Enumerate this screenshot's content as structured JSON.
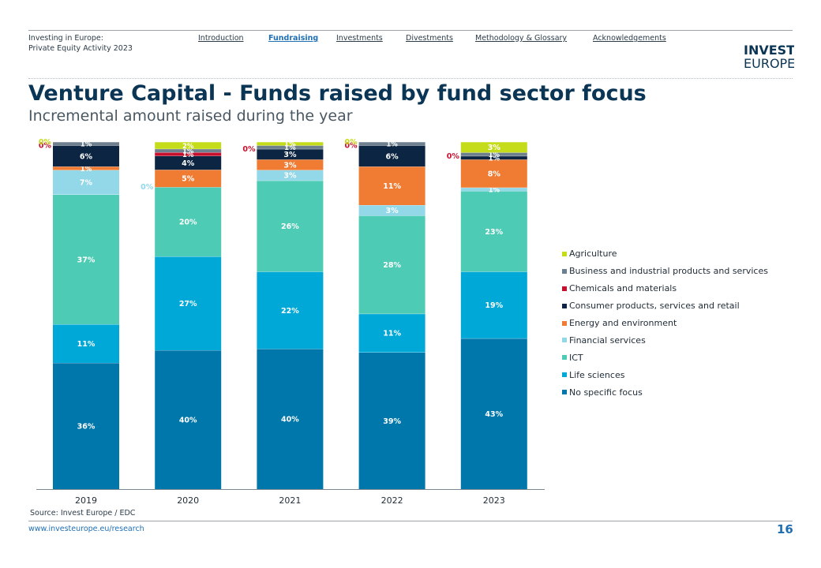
{
  "header": {
    "doc_title_line1": "Investing in Europe:",
    "doc_title_line2": "Private Equity Activity 2023",
    "nav": [
      "Introduction",
      "Fundraising",
      "Investments",
      "Divestments",
      "Methodology & Glossary",
      "Acknowledgements"
    ],
    "active_nav": "Fundraising",
    "logo_line1": "INVEST",
    "logo_line2": "EUROPE"
  },
  "page": {
    "title": "Venture Capital - Funds raised by fund sector focus",
    "subtitle": "Incremental amount raised during the year"
  },
  "chart_data": {
    "type": "bar",
    "stacked": true,
    "normalized": true,
    "categories": [
      "2019",
      "2020",
      "2021",
      "2022",
      "2023"
    ],
    "ylim": [
      0,
      100
    ],
    "grid": false,
    "legend_position": "right",
    "series": [
      {
        "name": "No specific focus",
        "color": "#0077ab",
        "values": [
          36,
          40,
          40,
          39,
          43
        ]
      },
      {
        "name": "Life sciences",
        "color": "#00a8d8",
        "values": [
          11,
          27,
          22,
          11,
          19
        ]
      },
      {
        "name": "ICT",
        "color": "#4ecbb4",
        "values": [
          37,
          20,
          26,
          28,
          23
        ]
      },
      {
        "name": "Financial services",
        "color": "#92d8e8",
        "values": [
          7,
          0,
          3,
          3,
          1
        ]
      },
      {
        "name": "Energy and environment",
        "color": "#f07c33",
        "values": [
          1,
          5,
          3,
          11,
          8
        ]
      },
      {
        "name": "Consumer products, services and retail",
        "color": "#0b2542",
        "values": [
          6,
          4,
          3,
          6,
          1
        ]
      },
      {
        "name": "Chemicals and materials",
        "color": "#c8102e",
        "values": [
          0,
          1,
          0,
          0,
          0
        ]
      },
      {
        "name": "Business and industrial products and services",
        "color": "#6e7f8d",
        "values": [
          1,
          1,
          1,
          1,
          1
        ]
      },
      {
        "name": "Agriculture",
        "color": "#c5dc1a",
        "values": [
          0,
          2,
          1,
          0,
          3
        ]
      }
    ],
    "labels": [
      [
        "36%",
        "11%",
        "37%",
        "7%",
        "1%",
        "6%",
        "0%",
        "1%",
        "0%"
      ],
      [
        "40%",
        "27%",
        "20%",
        "0%",
        "5%",
        "4%",
        "1%",
        "1%",
        "2%"
      ],
      [
        "40%",
        "22%",
        "26%",
        "3%",
        "3%",
        "3%",
        "0%",
        "1%",
        "1%"
      ],
      [
        "39%",
        "11%",
        "28%",
        "3%",
        "11%",
        "6%",
        "0%",
        "1%",
        "0%"
      ],
      [
        "43%",
        "19%",
        "23%",
        "1%",
        "8%",
        "1%",
        "0%",
        "1%",
        "3%"
      ]
    ]
  },
  "footer": {
    "source": "Source: Invest Europe / EDC",
    "link": "www.investeurope.eu/research",
    "page_number": "16"
  }
}
